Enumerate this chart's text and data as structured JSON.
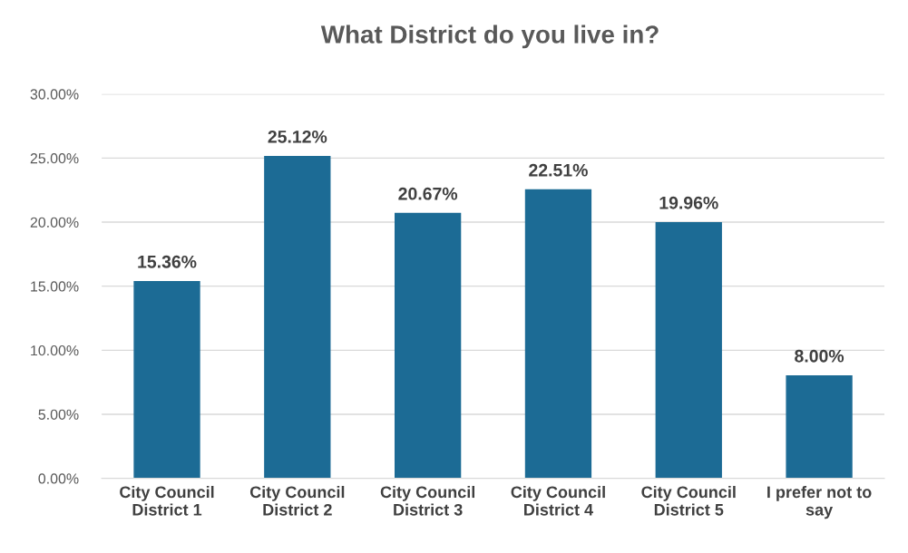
{
  "chart_data": {
    "type": "bar",
    "title": "What District do you live in?",
    "categories": [
      "City Council\nDistrict 1",
      "City Council\nDistrict 2",
      "City Council\nDistrict 3",
      "City Council\nDistrict 4",
      "City Council\nDistrict 5",
      "I prefer not to\nsay"
    ],
    "values": [
      15.36,
      25.12,
      20.67,
      22.51,
      19.96,
      8.0
    ],
    "value_labels": [
      "15.36%",
      "25.12%",
      "20.67%",
      "22.51%",
      "19.96%",
      "8.00%"
    ],
    "color": "#1c6b95",
    "ylim": [
      0,
      30
    ],
    "yticks": [
      {
        "value": 0,
        "label": "0.00%"
      },
      {
        "value": 5,
        "label": "5.00%"
      },
      {
        "value": 10,
        "label": "10.00%"
      },
      {
        "value": 15,
        "label": "15.00%"
      },
      {
        "value": 20,
        "label": "20.00%"
      },
      {
        "value": 25,
        "label": "25.00%"
      },
      {
        "value": 30,
        "label": "30.00%"
      }
    ],
    "grid": "y"
  }
}
